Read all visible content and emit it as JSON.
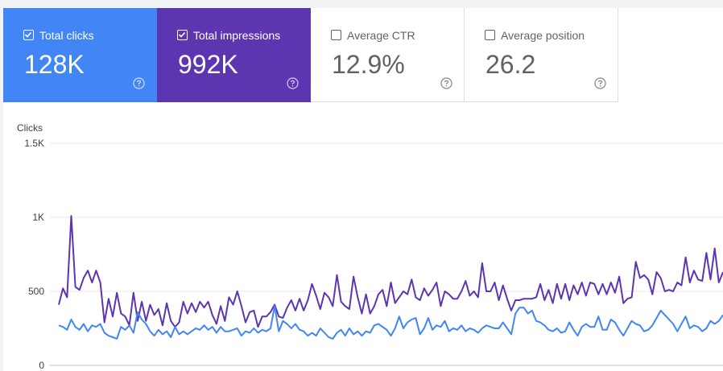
{
  "metrics": [
    {
      "id": "clicks",
      "label": "Total clicks",
      "value": "128K",
      "checked": true
    },
    {
      "id": "impressions",
      "label": "Total impressions",
      "value": "992K",
      "checked": true
    },
    {
      "id": "ctr",
      "label": "Average CTR",
      "value": "12.9%",
      "checked": false
    },
    {
      "id": "position",
      "label": "Average position",
      "value": "26.2",
      "checked": false
    }
  ],
  "colors": {
    "clicks": "#4285f4",
    "impressions": "#5e35b1",
    "grid": "#e8eaed",
    "text": "#5f6368"
  },
  "chart_data": {
    "type": "line",
    "ylabel": "Clicks",
    "yticks": [
      "1.5K",
      "1K",
      "500",
      "0"
    ],
    "ytick_values": [
      1500,
      1000,
      500,
      0
    ],
    "ylim": [
      0,
      1500
    ],
    "grid": true,
    "series": [
      {
        "name": "Total impressions",
        "color": "#5e35b1",
        "values": [
          410,
          520,
          460,
          1010,
          530,
          510,
          590,
          640,
          560,
          640,
          560,
          290,
          450,
          330,
          490,
          350,
          330,
          270,
          490,
          300,
          430,
          300,
          410,
          340,
          380,
          270,
          420,
          300,
          260,
          290,
          430,
          350,
          420,
          360,
          430,
          390,
          430,
          340,
          280,
          400,
          300,
          460,
          410,
          500,
          400,
          290,
          360,
          370,
          260,
          330,
          330,
          360,
          410,
          330,
          320,
          390,
          440,
          370,
          450,
          370,
          440,
          550,
          470,
          380,
          490,
          460,
          400,
          610,
          430,
          400,
          380,
          600,
          460,
          350,
          480,
          350,
          400,
          480,
          510,
          400,
          560,
          420,
          460,
          500,
          480,
          580,
          460,
          440,
          520,
          470,
          510,
          560,
          400,
          500,
          480,
          450,
          450,
          500,
          570,
          470,
          500,
          460,
          690,
          500,
          500,
          560,
          440,
          540,
          450,
          370,
          440,
          440,
          450,
          450,
          450,
          460,
          550,
          440,
          510,
          420,
          550,
          450,
          550,
          440,
          540,
          480,
          560,
          470,
          560,
          550,
          480,
          550,
          480,
          560,
          490,
          600,
          420,
          450,
          460,
          700,
          590,
          610,
          580,
          480,
          630,
          590,
          500,
          510,
          500,
          560,
          540,
          730,
          560,
          640,
          580,
          570,
          760,
          580,
          790,
          560,
          630
        ]
      },
      {
        "name": "Total clicks",
        "color": "#4285f4",
        "values": [
          270,
          260,
          240,
          310,
          260,
          240,
          280,
          230,
          270,
          260,
          280,
          220,
          200,
          190,
          180,
          260,
          240,
          270,
          220,
          360,
          310,
          280,
          230,
          200,
          240,
          210,
          230,
          190,
          260,
          210,
          230,
          210,
          230,
          250,
          240,
          270,
          240,
          260,
          220,
          260,
          230,
          230,
          240,
          250,
          200,
          230,
          220,
          250,
          220,
          240,
          230,
          250,
          400,
          230,
          300,
          280,
          250,
          280,
          240,
          230,
          200,
          220,
          200,
          250,
          220,
          190,
          180,
          220,
          240,
          200,
          250,
          210,
          230,
          200,
          230,
          220,
          270,
          280,
          260,
          240,
          200,
          250,
          330,
          250,
          290,
          310,
          320,
          210,
          250,
          320,
          240,
          270,
          260,
          300,
          230,
          250,
          240,
          270,
          230,
          250,
          240,
          220,
          250,
          270,
          260,
          250,
          250,
          290,
          250,
          210,
          350,
          390,
          390,
          350,
          370,
          300,
          290,
          270,
          240,
          230,
          250,
          220,
          230,
          290,
          240,
          200,
          260,
          280,
          260,
          260,
          330,
          240,
          240,
          310,
          290,
          240,
          200,
          250,
          300,
          280,
          270,
          230,
          240,
          270,
          320,
          370,
          340,
          310,
          280,
          230,
          280,
          330,
          250,
          270,
          260,
          230,
          250,
          300,
          280,
          300,
          340
        ]
      }
    ]
  }
}
